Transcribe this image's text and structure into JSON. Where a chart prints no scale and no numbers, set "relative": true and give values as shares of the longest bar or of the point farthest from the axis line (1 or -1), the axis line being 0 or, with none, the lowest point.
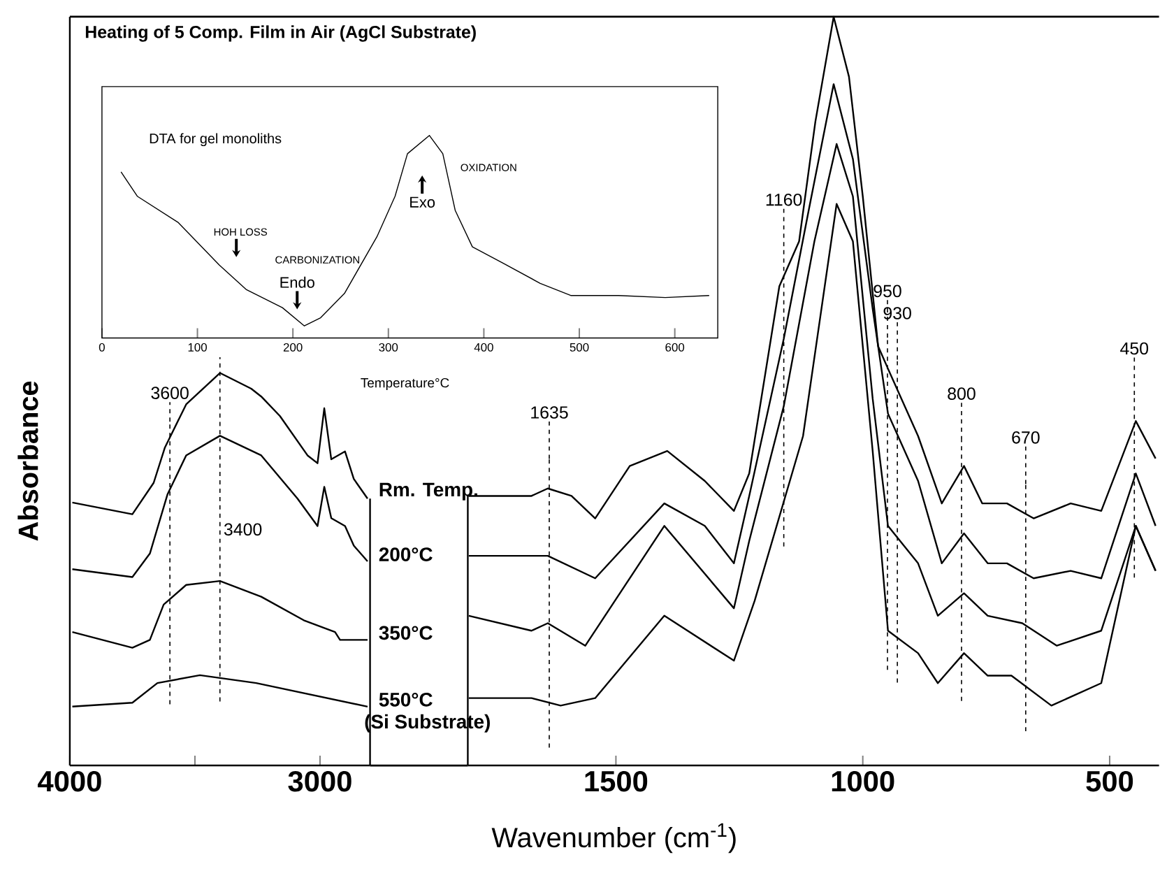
{
  "chart_data": [
    {
      "type": "line",
      "ylabel": "Absorbance",
      "relative": true,
      "xlim": [
        4000,
        2800
      ],
      "xticks": [
        4000,
        {
          "value": 3500,
          "label": null
        },
        3000
      ],
      "annotations": [
        "(Si Substrate)"
      ],
      "ref_lines": [
        {
          "axis": "x",
          "value": 3600,
          "label": "3600",
          "line_style": "dashed"
        },
        {
          "axis": "x",
          "value": 3400,
          "label": "3400",
          "line_style": "dashed"
        }
      ],
      "series": [
        {
          "name": "Rm. Temp.",
          "color": "#000000",
          "x": [
            3990,
            3750,
            3665,
            3620,
            3535,
            3400,
            3275,
            3235,
            3160,
            3050,
            3010,
            2983,
            2955,
            2900,
            2865,
            2810
          ],
          "values": [
            0.67,
            0.64,
            0.72,
            0.81,
            0.92,
            1.0,
            0.96,
            0.94,
            0.89,
            0.79,
            0.77,
            0.91,
            0.78,
            0.8,
            0.73,
            0.68
          ]
        },
        {
          "name": "200°C",
          "color": "#000000",
          "x": [
            3990,
            3750,
            3680,
            3610,
            3535,
            3400,
            3235,
            3090,
            3010,
            2983,
            2955,
            2900,
            2865,
            2810
          ],
          "values": [
            0.5,
            0.48,
            0.54,
            0.69,
            0.79,
            0.84,
            0.79,
            0.68,
            0.61,
            0.71,
            0.63,
            0.61,
            0.56,
            0.52
          ]
        },
        {
          "name": "350°C",
          "color": "#000000",
          "x": [
            3990,
            3750,
            3680,
            3625,
            3535,
            3400,
            3235,
            3065,
            2940,
            2920,
            2810
          ],
          "values": [
            0.34,
            0.3,
            0.32,
            0.41,
            0.46,
            0.47,
            0.43,
            0.37,
            0.34,
            0.32,
            0.32
          ]
        },
        {
          "name": "550°C",
          "color": "#000000",
          "x": [
            3990,
            3750,
            3650,
            3480,
            3255,
            2810
          ],
          "values": [
            0.15,
            0.16,
            0.21,
            0.23,
            0.21,
            0.15
          ]
        }
      ]
    },
    {
      "type": "line",
      "xlabel": "Wavenumber (cm$^{-1}$)",
      "relative": true,
      "xlim": [
        1800,
        400
      ],
      "xticks": [
        1500,
        1000,
        500
      ],
      "ref_lines": [
        {
          "axis": "x",
          "value": 1635,
          "label": "1635",
          "line_style": "dashed"
        },
        {
          "axis": "x",
          "value": 1160,
          "label": "1160",
          "line_style": "dashed"
        },
        {
          "axis": "x",
          "value": 950,
          "label": "950",
          "line_style": "dashed"
        },
        {
          "axis": "x",
          "value": 930,
          "label": "930",
          "line_style": "dashed"
        },
        {
          "axis": "x",
          "value": 800,
          "label": "800",
          "line_style": "dashed"
        },
        {
          "axis": "x",
          "value": 670,
          "label": "670",
          "line_style": "dashed"
        },
        {
          "axis": "x",
          "value": 450,
          "label": "450",
          "line_style": "dashed"
        }
      ],
      "series": [
        {
          "color": "#000000",
          "x": [
            1798,
            1671,
            1638,
            1590,
            1542,
            1472,
            1396,
            1320,
            1261,
            1230,
            1169,
            1129,
            1096,
            1059,
            1028,
            1000,
            969,
            949,
            888,
            840,
            795,
            758,
            708,
            654,
            579,
            517,
            447,
            407
          ],
          "values": [
            0.36,
            0.36,
            0.37,
            0.36,
            0.33,
            0.4,
            0.42,
            0.38,
            0.34,
            0.39,
            0.64,
            0.7,
            0.86,
            1.0,
            0.92,
            0.76,
            0.56,
            0.53,
            0.44,
            0.35,
            0.4,
            0.35,
            0.35,
            0.33,
            0.35,
            0.34,
            0.46,
            0.41
          ]
        },
        {
          "color": "#000000",
          "x": [
            1798,
            1671,
            1638,
            1542,
            1402,
            1320,
            1261,
            1230,
            1160,
            1110,
            1059,
            1020,
            980,
            949,
            888,
            840,
            795,
            747,
            708,
            654,
            579,
            517,
            447,
            407
          ],
          "values": [
            0.28,
            0.28,
            0.28,
            0.25,
            0.35,
            0.32,
            0.27,
            0.36,
            0.57,
            0.74,
            0.91,
            0.81,
            0.61,
            0.47,
            0.38,
            0.27,
            0.31,
            0.27,
            0.27,
            0.25,
            0.26,
            0.25,
            0.39,
            0.32
          ]
        },
        {
          "color": "#000000",
          "x": [
            1798,
            1671,
            1638,
            1562,
            1402,
            1261,
            1230,
            1160,
            1098,
            1053,
            1020,
            980,
            949,
            888,
            848,
            795,
            747,
            677,
            607,
            517,
            447,
            407
          ],
          "values": [
            0.2,
            0.18,
            0.19,
            0.16,
            0.32,
            0.21,
            0.3,
            0.48,
            0.7,
            0.83,
            0.76,
            0.49,
            0.32,
            0.27,
            0.2,
            0.23,
            0.2,
            0.19,
            0.16,
            0.18,
            0.32,
            0.26
          ]
        },
        {
          "color": "#000000",
          "x": [
            1798,
            1671,
            1612,
            1542,
            1402,
            1261,
            1219,
            1121,
            1053,
            1020,
            980,
            949,
            888,
            848,
            795,
            747,
            699,
            618,
            517,
            447,
            407
          ],
          "values": [
            0.09,
            0.09,
            0.08,
            0.09,
            0.2,
            0.14,
            0.22,
            0.44,
            0.75,
            0.7,
            0.42,
            0.18,
            0.15,
            0.11,
            0.15,
            0.12,
            0.12,
            0.08,
            0.11,
            0.32,
            0.26
          ]
        }
      ]
    },
    {
      "type": "line",
      "title": "Heating of 5 Comp. Film in Air (AgCl Substrate)",
      "subtitle": "DTA for gel monoliths",
      "xlabel": "Temperature°C",
      "relative": true,
      "xlim": [
        0,
        645
      ],
      "xticks": [
        0,
        100,
        200,
        300,
        400,
        500,
        600
      ],
      "annotations": [
        "OXIDATION",
        "Exo",
        "HOH LOSS",
        "CARBONIZATION",
        "Endo"
      ],
      "series": [
        {
          "color": "#000000",
          "x": [
            20,
            37,
            80,
            123,
            151,
            189,
            212,
            229,
            254,
            288,
            307,
            320,
            343,
            357,
            370,
            388,
            420,
            459,
            491,
            541,
            590,
            636
          ],
          "values": [
            0.82,
            0.7,
            0.57,
            0.36,
            0.24,
            0.15,
            0.06,
            0.1,
            0.22,
            0.5,
            0.7,
            0.91,
            1.0,
            0.91,
            0.63,
            0.45,
            0.37,
            0.27,
            0.21,
            0.21,
            0.2,
            0.21
          ]
        }
      ]
    }
  ]
}
